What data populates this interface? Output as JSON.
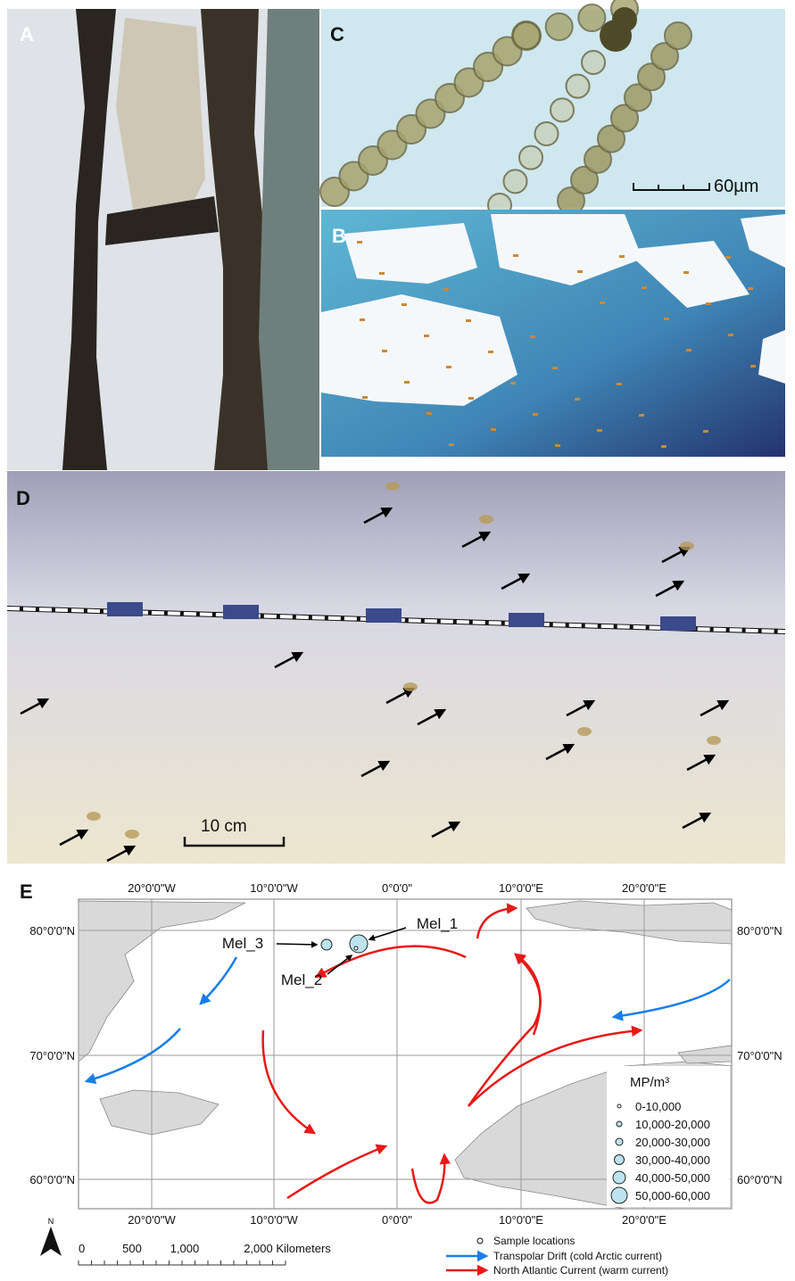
{
  "panels": {
    "a": {
      "label": "A"
    },
    "b": {
      "label": "B"
    },
    "c": {
      "label": "C",
      "scale_bar": "60µm"
    },
    "d": {
      "label": "D",
      "scale_bar": "10 cm"
    },
    "e": {
      "label": "E"
    }
  },
  "map": {
    "longitude_labels": [
      "20°0'0\"W",
      "10°0'0\"W",
      "0°0'0\"",
      "10°0'0\"E",
      "20°0'0\"E"
    ],
    "latitude_labels": [
      "80°0'0\"N",
      "70°0'0\"N",
      "60°0'0\"N"
    ],
    "sites": [
      "Mel_1",
      "Mel_2",
      "Mel_3"
    ],
    "legend": {
      "title": "MP/m³",
      "classes": [
        "0-10,000",
        "10,000-20,000",
        "20,000-30,000",
        "30,000-40,000",
        "40,000-50,000",
        "50,000-60,000"
      ]
    },
    "north_label": "N",
    "scale_bar": [
      "0",
      "500",
      "1,000",
      "2,000 Kilometers"
    ],
    "key": [
      "Sample locations",
      "Transpolar Drift (cold Arctic current)",
      "North Atlantic Current (warm current)"
    ]
  }
}
